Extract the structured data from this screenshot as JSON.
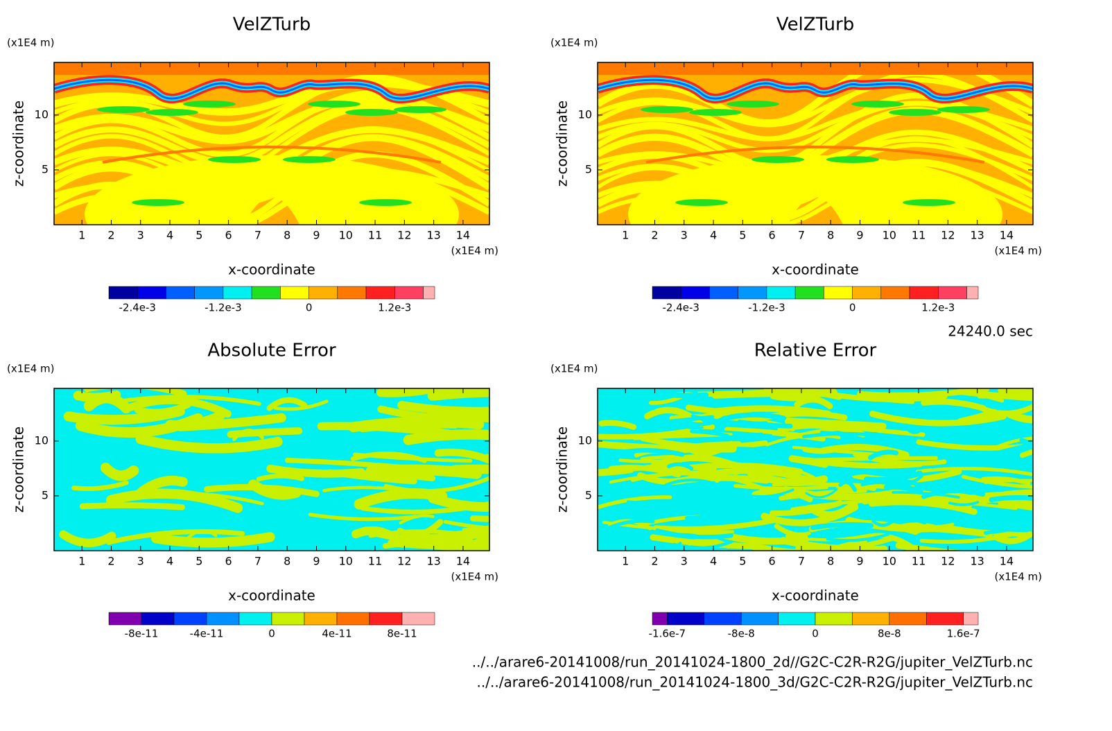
{
  "chart_data": [
    {
      "type": "contour",
      "title": "VelZTurb",
      "x_label": "x-coordinate",
      "y_label": "z-coordinate",
      "x_unit": "(x1E4 m)",
      "y_unit": "(x1E4 m)",
      "xlim": [
        0.05,
        14.9
      ],
      "ylim": [
        0,
        14.8
      ],
      "xticks": [
        1,
        2,
        3,
        4,
        5,
        6,
        7,
        8,
        9,
        10,
        11,
        12,
        13,
        14
      ],
      "yticks": [
        5,
        10
      ],
      "colorbar": {
        "levels": [
          -0.0028,
          -0.0024,
          -0.002,
          -0.0016,
          -0.0012,
          -0.0008,
          -0.0004,
          0,
          0.0004,
          0.0008,
          0.0012,
          0.0016
        ],
        "colors": [
          "#0000a0",
          "#0000e8",
          "#0060ff",
          "#0098ff",
          "#00f0f0",
          "#20e020",
          "#ffff00",
          "#ffb000",
          "#ff7800",
          "#ff2020",
          "#ff4060"
        ],
        "extend_high_color": "#ffb0b0",
        "ticks": [
          {
            "value": -0.0024,
            "label": "-2.4e-3"
          },
          {
            "value": -0.0012,
            "label": "-1.2e-3"
          },
          0,
          {
            "value": 0.0012,
            "label": "1.2e-3"
          }
        ]
      }
    },
    {
      "type": "contour",
      "title": "VelZTurb",
      "x_label": "x-coordinate",
      "y_label": "z-coordinate",
      "x_unit": "(x1E4 m)",
      "y_unit": "(x1E4 m)",
      "xlim": [
        0.05,
        14.9
      ],
      "ylim": [
        0,
        14.8
      ],
      "xticks": [
        1,
        2,
        3,
        4,
        5,
        6,
        7,
        8,
        9,
        10,
        11,
        12,
        13,
        14
      ],
      "yticks": [
        5,
        10
      ],
      "colorbar": {
        "levels": [
          -0.0028,
          -0.0024,
          -0.002,
          -0.0016,
          -0.0012,
          -0.0008,
          -0.0004,
          0,
          0.0004,
          0.0008,
          0.0012,
          0.0016
        ],
        "colors": [
          "#0000a0",
          "#0000e8",
          "#0060ff",
          "#0098ff",
          "#00f0f0",
          "#20e020",
          "#ffff00",
          "#ffb000",
          "#ff7800",
          "#ff2020",
          "#ff4060"
        ],
        "extend_high_color": "#ffb0b0",
        "ticks": [
          {
            "value": -0.0024,
            "label": "-2.4e-3"
          },
          {
            "value": -0.0012,
            "label": "-1.2e-3"
          },
          0,
          {
            "value": 0.0012,
            "label": "1.2e-3"
          }
        ]
      }
    },
    {
      "type": "contour",
      "title": "Absolute Error",
      "x_label": "x-coordinate",
      "y_label": "z-coordinate",
      "x_unit": "(x1E4 m)",
      "y_unit": "(x1E4 m)",
      "xlim": [
        0.05,
        14.9
      ],
      "ylim": [
        0,
        14.8
      ],
      "xticks": [
        1,
        2,
        3,
        4,
        5,
        6,
        7,
        8,
        9,
        10,
        11,
        12,
        13,
        14
      ],
      "yticks": [
        5,
        10
      ],
      "colorbar": {
        "levels": [
          -1e-10,
          -8e-11,
          -6e-11,
          -4e-11,
          -2e-11,
          0,
          2e-11,
          4e-11,
          6e-11,
          8e-11,
          1e-10
        ],
        "colors": [
          "#8000b0",
          "#0000c8",
          "#0040ff",
          "#0090ff",
          "#00f0f0",
          "#c8f000",
          "#ffb000",
          "#ff7000",
          "#ff2020",
          "#ffb0b0"
        ],
        "ticks": [
          {
            "value": -8e-11,
            "label": "-8e-11"
          },
          {
            "value": -4e-11,
            "label": "-4e-11"
          },
          0,
          {
            "value": 4e-11,
            "label": "4e-11"
          },
          {
            "value": 8e-11,
            "label": "8e-11"
          }
        ]
      }
    },
    {
      "type": "contour",
      "title": "Relative Error",
      "x_label": "x-coordinate",
      "y_label": "z-coordinate",
      "x_unit": "(x1E4 m)",
      "y_unit": "(x1E4 m)",
      "xlim": [
        0.05,
        14.9
      ],
      "ylim": [
        0,
        14.8
      ],
      "xticks": [
        1,
        2,
        3,
        4,
        5,
        6,
        7,
        8,
        9,
        10,
        11,
        12,
        13,
        14
      ],
      "yticks": [
        5,
        10
      ],
      "colorbar": {
        "levels": [
          -1.6e-07,
          -1.2e-07,
          -8e-08,
          -4e-08,
          0,
          4e-08,
          8e-08,
          1.2e-07,
          1.6e-07
        ],
        "colors": [
          "#0000c8",
          "#0040ff",
          "#0090ff",
          "#00f0f0",
          "#c8f000",
          "#ffb000",
          "#ff7000",
          "#ff2020"
        ],
        "extend_low_color": "#8000b0",
        "extend_high_color": "#ffb0b0",
        "ticks": [
          {
            "value": -1.6e-07,
            "label": "-1.6e-7"
          },
          {
            "value": -8e-08,
            "label": "-8e-8"
          },
          0,
          {
            "value": 8e-08,
            "label": "8e-8"
          },
          {
            "value": 1.6e-07,
            "label": "1.6e-7"
          }
        ]
      }
    }
  ],
  "annotations": {
    "time": "24240.0 sec",
    "files": [
      "../../arare6-20141008/run_20141024-1800_2d//G2C-C2R-R2G/jupiter_VelZTurb.nc",
      "../../arare6-20141008/run_20141024-1800_3d/G2C-C2R-R2G/jupiter_VelZTurb.nc"
    ]
  }
}
